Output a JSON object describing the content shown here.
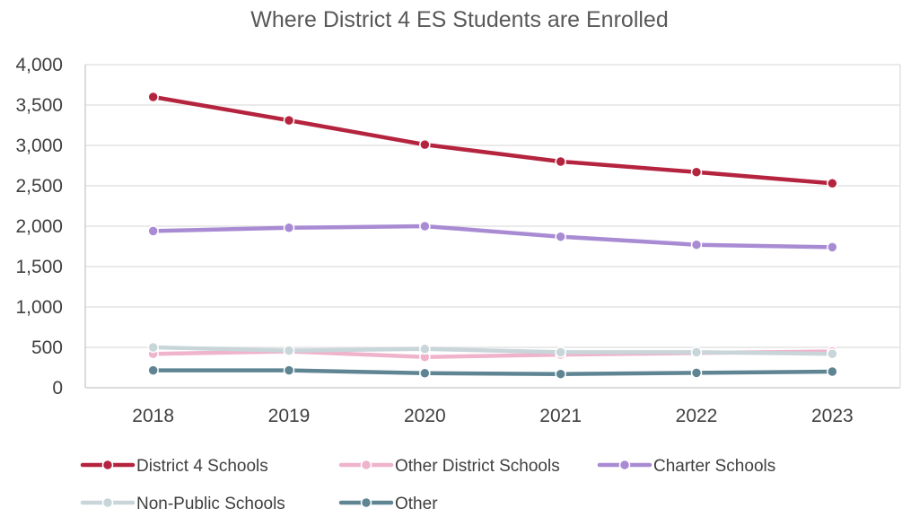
{
  "chart_data": {
    "type": "line",
    "title": "Where District 4 ES Students are Enrolled",
    "xlabel": "",
    "ylabel": "",
    "categories": [
      "2018",
      "2019",
      "2020",
      "2021",
      "2022",
      "2023"
    ],
    "ylim": [
      0,
      4000
    ],
    "yticks": [
      0,
      500,
      1000,
      1500,
      2000,
      2500,
      3000,
      3500,
      4000
    ],
    "ytick_labels": [
      "0",
      "500",
      "1,000",
      "1,500",
      "2,000",
      "2,500",
      "3,000",
      "3,500",
      "4,000"
    ],
    "grid": true,
    "legend_position": "bottom",
    "series": [
      {
        "name": "District 4 Schools",
        "color": "#b5243f",
        "values": [
          3600,
          3310,
          3010,
          2800,
          2670,
          2530
        ]
      },
      {
        "name": "Other District Schools",
        "color": "#f0b3cc",
        "values": [
          420,
          450,
          380,
          410,
          430,
          450
        ]
      },
      {
        "name": "Charter Schools",
        "color": "#a98bd4",
        "values": [
          1940,
          1980,
          2000,
          1870,
          1770,
          1740
        ]
      },
      {
        "name": "Non-Public Schools",
        "color": "#c8d5d9",
        "values": [
          500,
          460,
          480,
          440,
          440,
          420
        ]
      },
      {
        "name": "Other",
        "color": "#5f8593",
        "values": [
          215,
          215,
          180,
          170,
          185,
          200
        ]
      }
    ]
  }
}
